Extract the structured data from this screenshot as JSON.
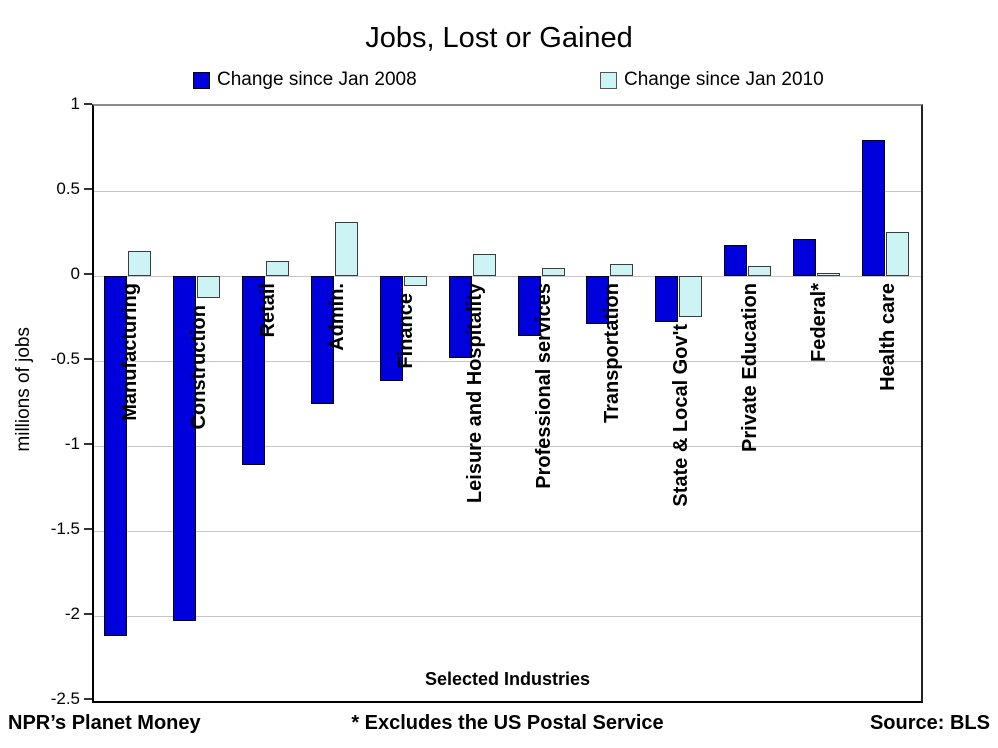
{
  "header": {
    "title": "Jobs, Lost or Gained"
  },
  "legend": {
    "items": [
      {
        "label": "Change since Jan 2008",
        "color": "#0000DC",
        "border": "#000000"
      },
      {
        "label": "Change since Jan 2010",
        "color": "#CCF4F4",
        "border": "#555555"
      }
    ]
  },
  "footer": {
    "left": "NPR’s Planet Money",
    "center": "* Excludes the US Postal Service",
    "right": "Source: BLS"
  },
  "chart_data": {
    "type": "bar",
    "title": "Jobs, Lost or Gained",
    "xlabel": "Selected Industries",
    "ylabel": "millions of jobs",
    "ylim": [
      -2.5,
      1
    ],
    "y_ticks": [
      1,
      0.5,
      0,
      -0.5,
      -1,
      -1.5,
      -2,
      -2.5
    ],
    "grid": true,
    "legend_position": "top",
    "categories": [
      "Manufacturing",
      "Construction",
      "Retail",
      "Admin.",
      "Finance",
      "Leisure and Hospitality",
      "Professional services",
      "Transportation",
      "State & Local Gov't",
      "Private Education",
      "Federal*",
      "Health care"
    ],
    "series": [
      {
        "name": "Change since Jan 2008",
        "color": "#0000DC",
        "border": "#000000",
        "values": [
          -2.12,
          -2.03,
          -1.11,
          -0.75,
          -0.62,
          -0.48,
          -0.35,
          -0.28,
          -0.27,
          0.18,
          0.22,
          0.8
        ]
      },
      {
        "name": "Change since Jan 2010",
        "color": "#CCF4F4",
        "border": "#3c3c3c",
        "values": [
          0.15,
          -0.13,
          0.09,
          0.32,
          -0.06,
          0.13,
          0.05,
          0.07,
          -0.24,
          0.06,
          0.02,
          0.26
        ]
      }
    ]
  }
}
